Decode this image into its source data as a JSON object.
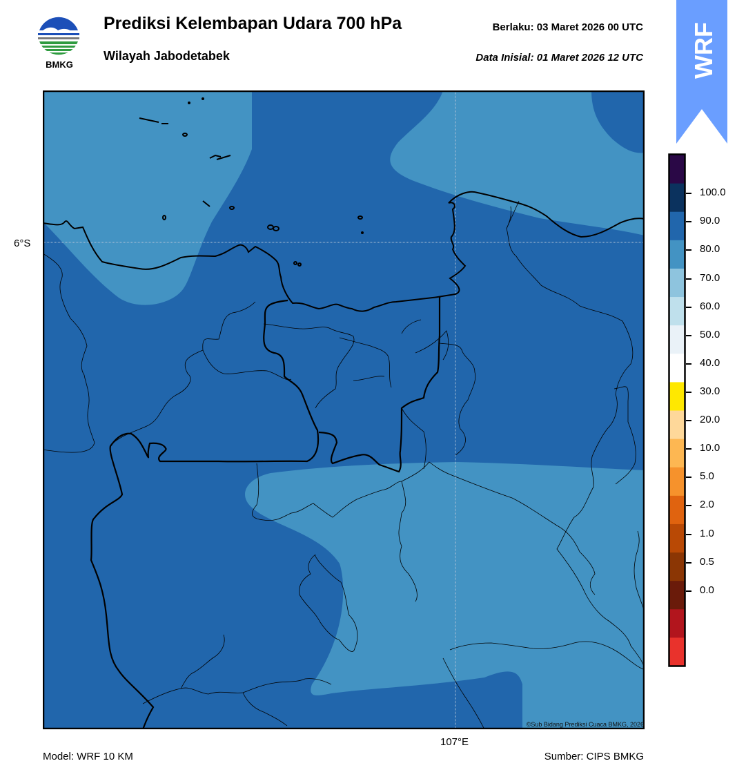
{
  "header": {
    "title": "Prediksi Kelembapan Udara 700 hPa",
    "subtitle": "Wilayah Jabodetabek",
    "valid_time": "Berlaku:  03 Maret 2026 00 UTC",
    "initial_time": "Data Inisial:  01 Maret 2026 12 UTC"
  },
  "logo": {
    "text": "BMKG",
    "icon": "bmkg-logo"
  },
  "badge": {
    "text": "WRF",
    "color": "#6a9eff"
  },
  "map": {
    "lat_label": "6°S",
    "lon_label": "107°E",
    "copyright": "©Sub Bidang Prediksi Cuaca BMKG, 2026",
    "colors": {
      "high": "#2166ac",
      "mid": "#4393c3"
    }
  },
  "colorbar": {
    "labels": [
      "100.0",
      "90.0",
      "80.0",
      "70.0",
      "60.0",
      "50.0",
      "40.0",
      "30.0",
      "20.0",
      "10.0",
      "5.0",
      "2.0",
      "1.0",
      "0.5",
      "0.0"
    ],
    "colors": [
      "#e9322c",
      "#b2151d",
      "#6a1b0a",
      "#8b3604",
      "#b94905",
      "#e0630f",
      "#f6922c",
      "#fdb752",
      "#fed89a",
      "#ffe800",
      "#ffffff",
      "#eaf2f8",
      "#bfe0ec",
      "#8ec4de",
      "#4393c3",
      "#2166ac",
      "#0b325e",
      "#2a0846"
    ]
  },
  "footer": {
    "model": "Model: WRF 10 KM",
    "source": "Sumber: CIPS BMKG"
  }
}
